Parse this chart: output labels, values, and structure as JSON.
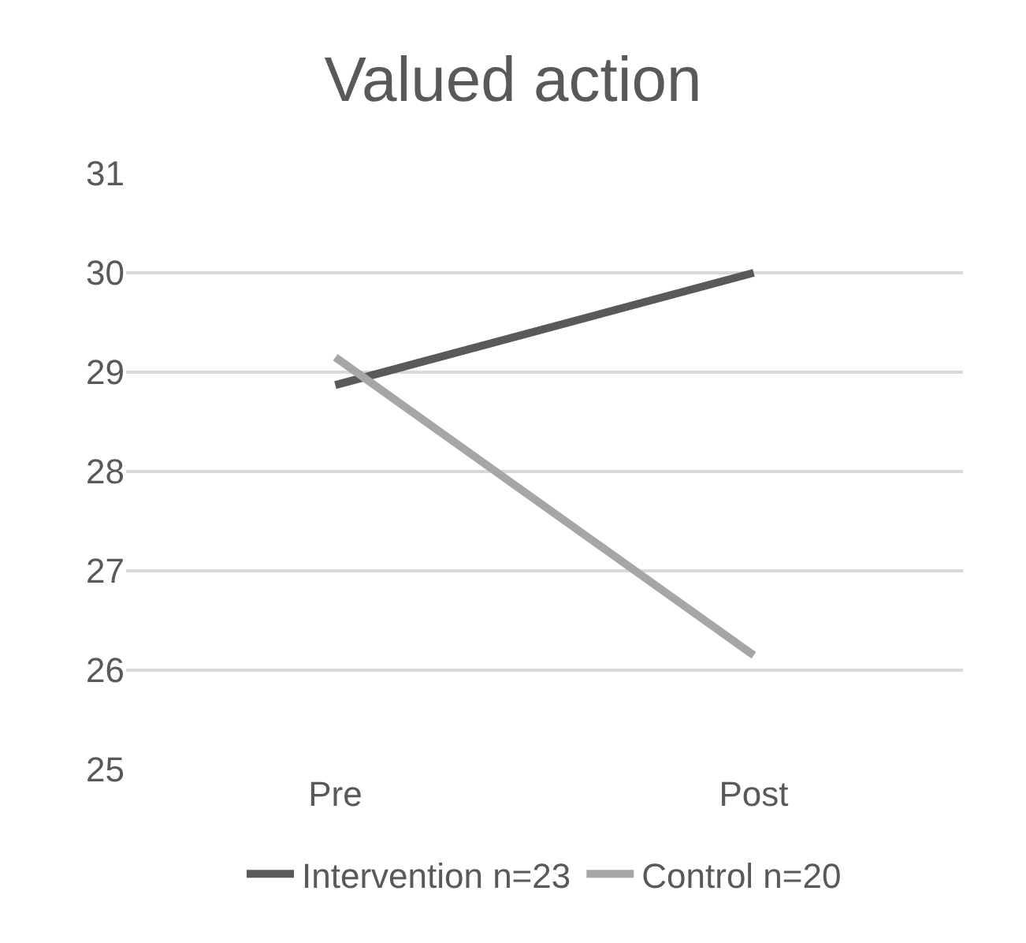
{
  "chart_data": {
    "type": "line",
    "title": "Valued action",
    "categories": [
      "Pre",
      "Post"
    ],
    "series": [
      {
        "name": "Intervention n=23",
        "color": "#595959",
        "values": [
          28.87,
          30.0
        ]
      },
      {
        "name": "Control n=20",
        "color": "#a6a6a6",
        "values": [
          29.15,
          26.15
        ]
      }
    ],
    "ylim": [
      25,
      31
    ],
    "yticks": [
      25,
      26,
      27,
      28,
      29,
      30,
      31
    ],
    "grid": "y",
    "legend": "bottom",
    "marker": "none",
    "line_style": "solid"
  }
}
